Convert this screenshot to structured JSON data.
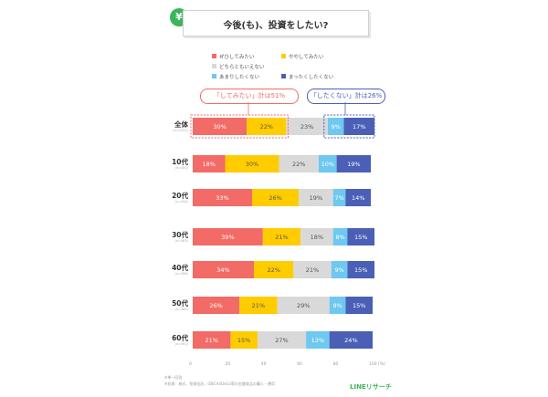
{
  "title": "今後(も)、投資をしたい?",
  "legend": [
    {
      "label": "ぜひしてみたい",
      "color": "#f26b66"
    },
    {
      "label": "ややしてみたい",
      "color": "#ffcc00"
    },
    {
      "label": "どちらともいえない",
      "color": "#d9d9d9"
    },
    {
      "label": "あまりしたくない",
      "color": "#6ec8f0"
    },
    {
      "label": "まったくしたくない",
      "color": "#4a5fb5"
    }
  ],
  "callouts": {
    "want": "「してみたい」計は51%",
    "dont": "「したくない」計は26%"
  },
  "chart_data": {
    "type": "bar",
    "orientation": "horizontal-stacked",
    "categories": [
      "全体",
      "10代",
      "20代",
      "30代",
      "40代",
      "50代",
      "60代"
    ],
    "sample_sizes": [
      "(n=2253)",
      "(n=400)",
      "(n=344)",
      "(n=363)",
      "(n=396)",
      "(n=389)",
      "(n=361)"
    ],
    "series": [
      {
        "name": "ぜひしてみたい",
        "values": [
          30,
          18,
          33,
          39,
          34,
          26,
          21
        ]
      },
      {
        "name": "ややしてみたい",
        "values": [
          22,
          30,
          26,
          21,
          22,
          21,
          15
        ]
      },
      {
        "name": "どちらともいえない",
        "values": [
          23,
          22,
          19,
          18,
          21,
          29,
          27
        ]
      },
      {
        "name": "あまりしたくない",
        "values": [
          9,
          10,
          7,
          8,
          9,
          9,
          13
        ]
      },
      {
        "name": "まったくしたくない",
        "values": [
          17,
          19,
          14,
          15,
          15,
          15,
          24
        ]
      }
    ],
    "xlim": [
      0,
      100
    ],
    "xticks": [
      "0",
      "20",
      "40",
      "60",
      "80",
      "100",
      "(%)"
    ]
  },
  "footnotes": [
    "※単一回答",
    "※投資：株式、投資信託、iDECA/iDeCo等の金融商品の購入・運用"
  ],
  "brand": "LINEリサーチ"
}
